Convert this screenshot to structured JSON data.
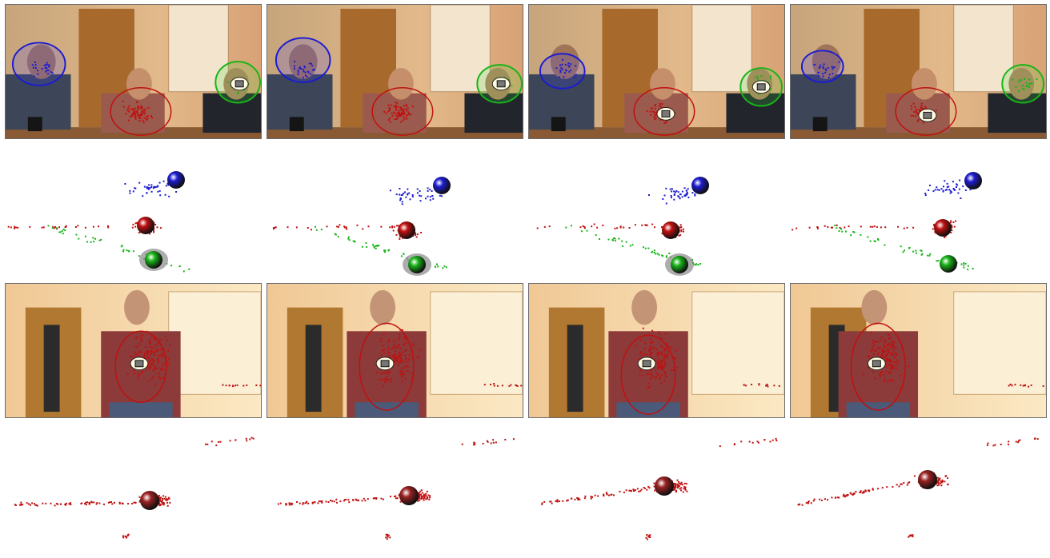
{
  "figure": {
    "rows": [
      {
        "name": "meeting-camera-row",
        "kind": "photo-scene-a",
        "panels": 4
      },
      {
        "name": "meeting-3d-row",
        "kind": "plot-multi",
        "panels": 4
      },
      {
        "name": "walking-camera-row",
        "kind": "photo-scene-b",
        "panels": 4
      },
      {
        "name": "walking-3d-row",
        "kind": "plot-single",
        "panels": 4
      }
    ],
    "colors": {
      "speaker_blue": "#1c1cd0",
      "speaker_red": "#c01010",
      "speaker_green": "#18b418",
      "photo_wall": "#e2b98a",
      "photo_door": "#a86a2c",
      "uncertainty_grey": "#8a8a8a"
    },
    "icons": [
      "active-speaker-marker-icon",
      "uncertainty-ellipse-icon",
      "speaker-sphere-icon"
    ]
  }
}
